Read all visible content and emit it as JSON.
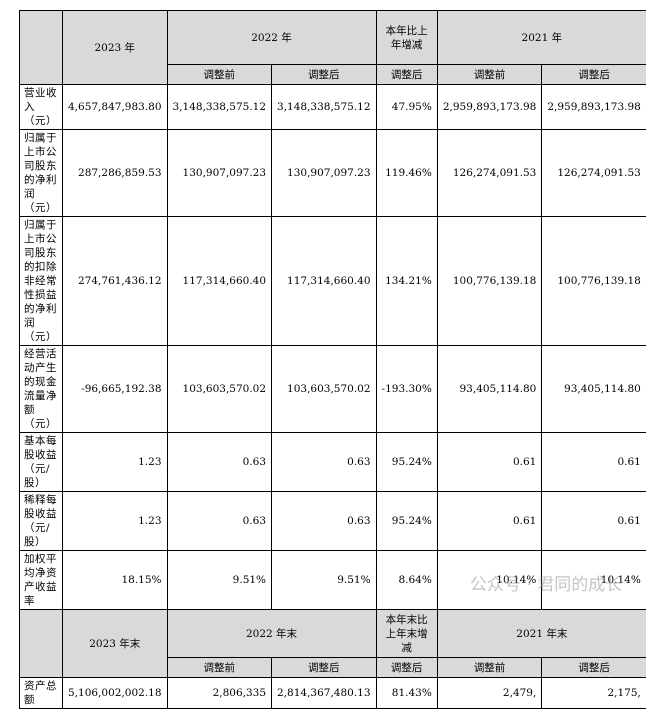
{
  "header": {
    "y2023": "2023 年",
    "y2022": "2022 年",
    "change": "本年比上年增减",
    "y2021": "2021 年",
    "before": "调整前",
    "after": "调整后"
  },
  "rows": [
    {
      "label": "营业收入（元）",
      "v2023": "4,657,847,983.80",
      "v2022_before": "3,148,338,575.12",
      "v2022_after": "3,148,338,575.12",
      "change": "47.95%",
      "v2021_before": "2,959,893,173.98",
      "v2021_after": "2,959,893,173.98"
    },
    {
      "label": "归属于上市公司股东的净利润（元）",
      "v2023": "287,286,859.53",
      "v2022_before": "130,907,097.23",
      "v2022_after": "130,907,097.23",
      "change": "119.46%",
      "v2021_before": "126,274,091.53",
      "v2021_after": "126,274,091.53"
    },
    {
      "label": "归属于上市公司股东的扣除非经常性损益的净利润（元）",
      "v2023": "274,761,436.12",
      "v2022_before": "117,314,660.40",
      "v2022_after": "117,314,660.40",
      "change": "134.21%",
      "v2021_before": "100,776,139.18",
      "v2021_after": "100,776,139.18"
    },
    {
      "label": "经营活动产生的现金流量净额（元）",
      "v2023": "-96,665,192.38",
      "v2022_before": "103,603,570.02",
      "v2022_after": "103,603,570.02",
      "change": "-193.30%",
      "v2021_before": "93,405,114.80",
      "v2021_after": "93,405,114.80"
    },
    {
      "label": "基本每股收益（元/股）",
      "v2023": "1.23",
      "v2022_before": "0.63",
      "v2022_after": "0.63",
      "change": "95.24%",
      "v2021_before": "0.61",
      "v2021_after": "0.61"
    },
    {
      "label": "稀释每股收益（元/股）",
      "v2023": "1.23",
      "v2022_before": "0.63",
      "v2022_after": "0.63",
      "change": "95.24%",
      "v2021_before": "0.61",
      "v2021_after": "0.61"
    },
    {
      "label": "加权平均净资产收益率",
      "v2023": "18.15%",
      "v2022_before": "9.51%",
      "v2022_after": "9.51%",
      "change": "8.64%",
      "v2021_before": "10.14%",
      "v2021_after": "10.14%"
    }
  ],
  "header2": {
    "y2023": "2023 年末",
    "y2022": "2022 年末",
    "change": "本年末比上年末增减",
    "y2021": "2021 年末",
    "before": "调整前",
    "after": "调整后"
  },
  "rows2": [
    {
      "label": "资产总额",
      "v2023": "5,106,002,002.18",
      "v2022_before": "2,806,335",
      "v2022_after": "2,814,367,480.13",
      "change": "81.43%",
      "v2021_before": "2,479,",
      "v2021_after": "2,175,"
    }
  ],
  "watermark": "公众号 · 君同的成长"
}
